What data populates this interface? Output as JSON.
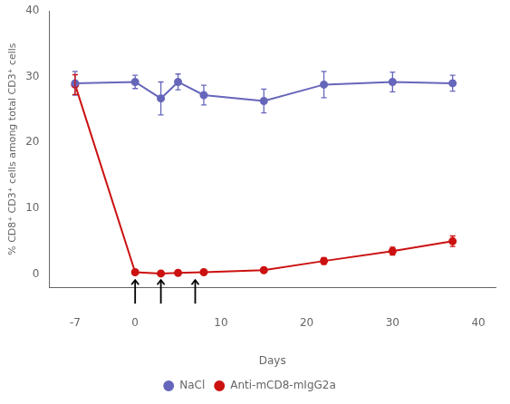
{
  "chart_data": {
    "type": "line",
    "x": [
      -7,
      0,
      3,
      5,
      8,
      15,
      22,
      30,
      37
    ],
    "series": [
      {
        "name": "NaCl",
        "color": "#6666bb",
        "marker": "circle",
        "line_style": "solid",
        "values": [
          29.0,
          29.2,
          26.7,
          29.2,
          27.2,
          26.3,
          28.8,
          29.2,
          29.0
        ],
        "errors": [
          1.8,
          1.0,
          2.5,
          1.2,
          1.5,
          1.8,
          2.0,
          1.5,
          1.2
        ]
      },
      {
        "name": "Anti-mCD8-mIgG2a",
        "color": "#cc1111",
        "marker": "circle",
        "line_style": "solid",
        "values": [
          28.8,
          0.3,
          0.1,
          0.2,
          0.3,
          0.6,
          2.0,
          3.5,
          5.0
        ],
        "errors": [
          1.5,
          0.2,
          0.1,
          0.15,
          0.2,
          0.3,
          0.5,
          0.6,
          0.8
        ]
      }
    ],
    "xlabel": "Days",
    "ylabel": "% CD8⁺ CD3⁺ cells among total CD3⁺ cells",
    "arrows": [
      0,
      3,
      7
    ],
    "xlim": [
      -10,
      42
    ],
    "ylim": [
      -2,
      40
    ],
    "xticks": [
      -7,
      0,
      10,
      20,
      30,
      40
    ],
    "yticks": [
      0,
      10,
      20,
      30,
      40
    ],
    "grid": false,
    "legend": "bottom"
  }
}
